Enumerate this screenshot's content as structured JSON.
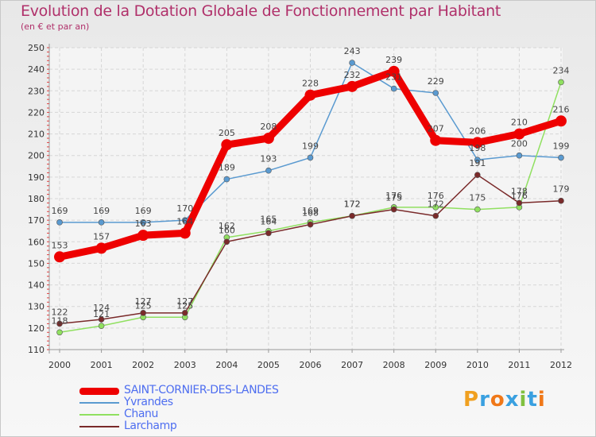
{
  "title": "Evolution de la Dotation Globale de Fonctionnement par Habitant",
  "subtitle": "(en € et par an)",
  "logo": {
    "letters": [
      "P",
      "r",
      "o",
      "x",
      "i",
      "t",
      "i"
    ],
    "colors": [
      "#f0a020",
      "#3aa0e0",
      "#f07818",
      "#3aa0e0",
      "#80c040",
      "#3aa0e0",
      "#f07818"
    ]
  },
  "chart_data": {
    "type": "line",
    "title": "Evolution de la Dotation Globale de Fonctionnement par Habitant",
    "subtitle": "(en € et par an)",
    "x": [
      "2000",
      "2001",
      "2002",
      "2003",
      "2004",
      "2005",
      "2006",
      "2007",
      "2008",
      "2009",
      "2010",
      "2011",
      "2012"
    ],
    "ylim": [
      110,
      250
    ],
    "yticks": [
      110,
      120,
      130,
      140,
      150,
      160,
      170,
      180,
      190,
      200,
      210,
      220,
      230,
      240,
      250
    ],
    "grid": true,
    "legend_position": "bottom-left",
    "series": [
      {
        "name": "SAINT-CORNIER-DES-LANDES",
        "color": "#ee0000",
        "values": [
          153,
          157,
          163,
          164,
          205,
          208,
          228,
          232,
          239,
          207,
          206,
          210,
          216
        ]
      },
      {
        "name": "Yvrandes",
        "color": "#5a9ad0",
        "values": [
          169,
          169,
          169,
          170,
          189,
          193,
          199,
          243,
          231,
          229,
          198,
          200,
          199
        ]
      },
      {
        "name": "Chanu",
        "color": "#90e060",
        "values": [
          118,
          121,
          125,
          125,
          162,
          165,
          169,
          172,
          176,
          176,
          175,
          176,
          234
        ]
      },
      {
        "name": "Larchamp",
        "color": "#7a2a2a",
        "values": [
          122,
          124,
          127,
          127,
          160,
          164,
          168,
          172,
          175,
          172,
          191,
          178,
          179
        ]
      }
    ]
  }
}
